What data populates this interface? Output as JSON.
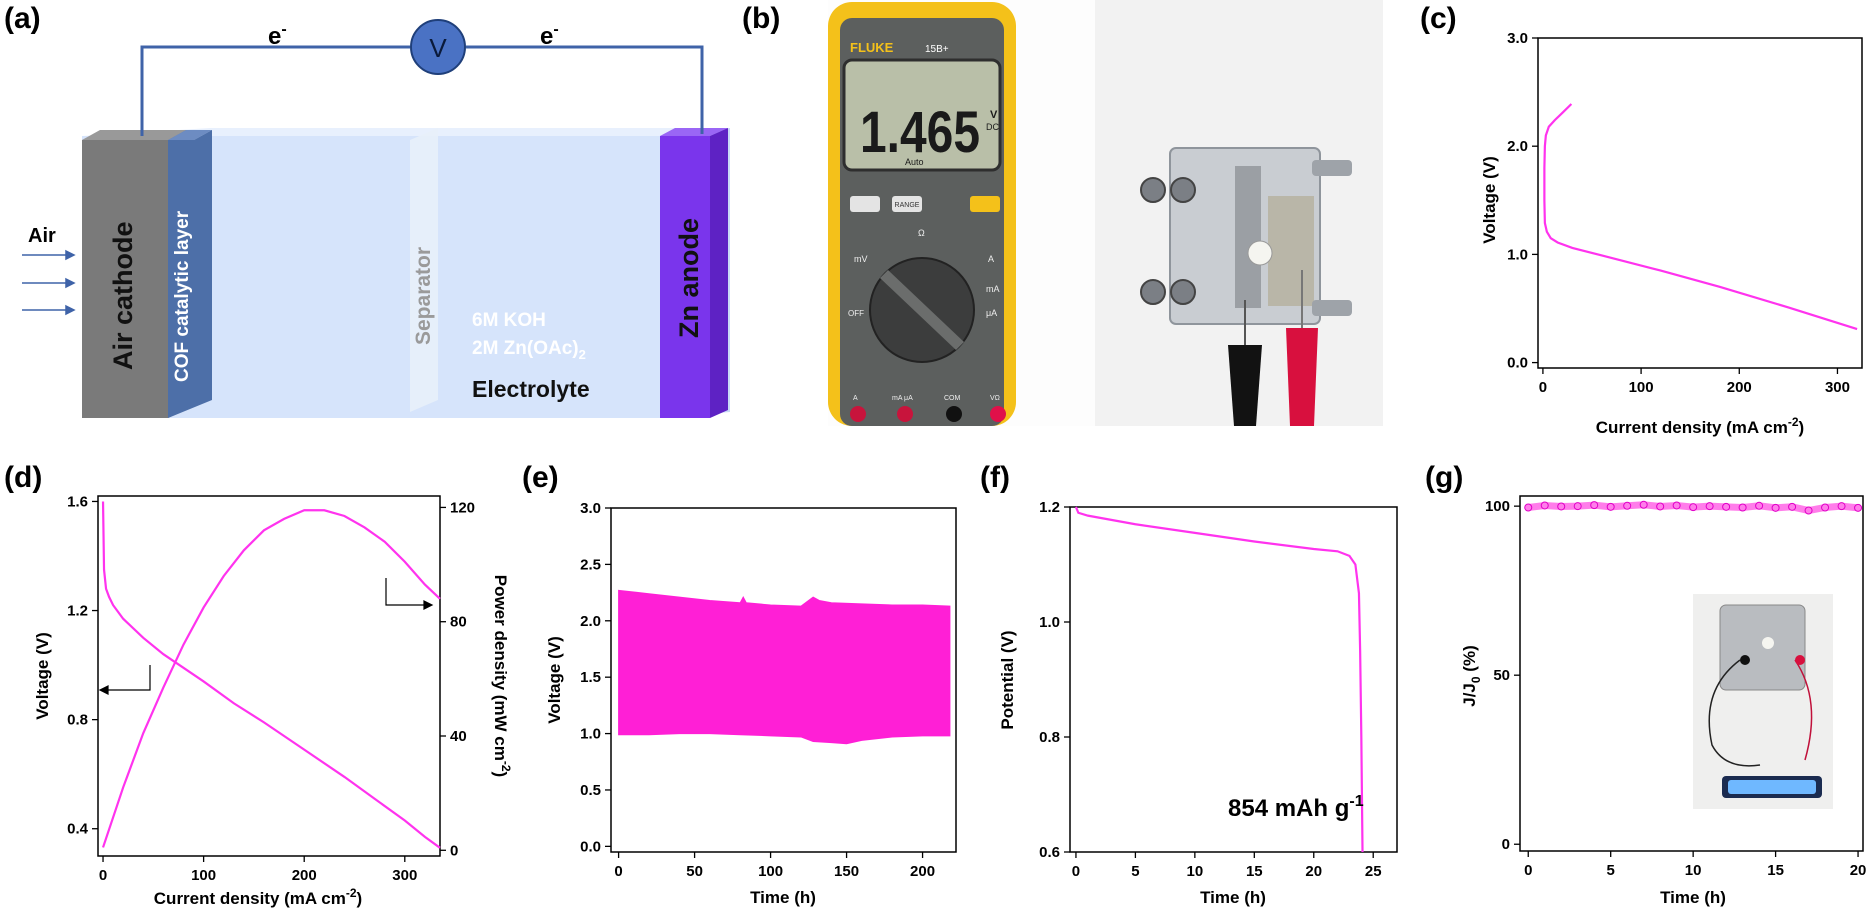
{
  "panel_labels": {
    "a": "(a)",
    "b": "(b)",
    "c": "(c)",
    "d": "(d)",
    "e": "(e)",
    "f": "(f)",
    "g": "(g)"
  },
  "schematic": {
    "electron_left": "e",
    "electron_right": "e",
    "electron_sup": "-",
    "voltmeter": "V",
    "air_label": "Air",
    "air_cathode": "Air cathode",
    "cof_layer": "COF catalytic layer",
    "separator": "Separator",
    "koh": "6M KOH",
    "zn_acetate_main": "2M Zn(OAc)",
    "zn_acetate_sub": "2",
    "electrolyte": "Electrolyte",
    "zn_anode": "Zn anode",
    "colors": {
      "cathode": "#7a7a7a",
      "cof": "#4d6fa8",
      "electrolyte": "#d6e4fb",
      "anode": "#7a35ec",
      "wire": "#3f63a8"
    }
  },
  "photo": {
    "multimeter_brand": "FLUKE",
    "multimeter_model": "15B+",
    "display_value": "1.465",
    "display_unit": "V",
    "display_unit_sub": "DC",
    "display_mode": "Auto",
    "button_range": "RANGE",
    "dial_labels": [
      "mV",
      "Ω",
      "A",
      "mA",
      "μA",
      "OFF"
    ],
    "jack_labels": [
      "A",
      "mA μA",
      "COM",
      "VΩ"
    ]
  },
  "chart_data": [
    {
      "panel": "c",
      "type": "line",
      "xlabel_main": "Current density (mA cm",
      "xlabel_sup": "-2",
      "xlabel_end": ")",
      "ylabel": "Voltage (V)",
      "xlim": [
        -5,
        325
      ],
      "ylim": [
        -0.05,
        3.0
      ],
      "xticks": [
        0,
        100,
        200,
        300
      ],
      "yticks": [
        0.0,
        1.0,
        2.0,
        3.0
      ],
      "ytick_labels": [
        "0.0",
        "1.0",
        "2.0",
        "3.0"
      ],
      "color": "#ff33ee",
      "series": [
        {
          "x": [
            320,
            250,
            180,
            120,
            60,
            30,
            15,
            8,
            4,
            2,
            1.5,
            1.5,
            2,
            3,
            6,
            12,
            20,
            29
          ],
          "y": [
            0.31,
            0.51,
            0.7,
            0.85,
            0.99,
            1.06,
            1.11,
            1.15,
            1.21,
            1.29,
            1.5,
            1.8,
            2.0,
            2.1,
            2.18,
            2.24,
            2.31,
            2.39
          ]
        }
      ]
    },
    {
      "panel": "d",
      "type": "line",
      "xlabel_main": "Current density (mA cm",
      "xlabel_sup": "-2",
      "xlabel_end": ")",
      "ylabel": "Voltage (V)",
      "y2label_main": "Power density (mW cm",
      "y2label_sup": "-2",
      "y2label_end": ")",
      "xlim": [
        -5,
        335
      ],
      "ylim": [
        0.3,
        1.62
      ],
      "y2lim": [
        -2,
        124
      ],
      "xticks": [
        0,
        100,
        200,
        300
      ],
      "yticks": [
        0.4,
        0.8,
        1.2,
        1.6
      ],
      "y2ticks": [
        0,
        40,
        80,
        120
      ],
      "color": "#ff33ee",
      "series": [
        {
          "axis": "left",
          "x": [
            0,
            1,
            3,
            6,
            10,
            20,
            40,
            60,
            80,
            100,
            130,
            160,
            200,
            240,
            270,
            300,
            320,
            335
          ],
          "y": [
            1.6,
            1.35,
            1.28,
            1.25,
            1.22,
            1.17,
            1.1,
            1.04,
            0.99,
            0.94,
            0.86,
            0.79,
            0.69,
            0.59,
            0.51,
            0.43,
            0.37,
            0.33
          ]
        },
        {
          "axis": "right",
          "x": [
            0,
            20,
            40,
            60,
            80,
            100,
            120,
            140,
            160,
            180,
            200,
            220,
            240,
            260,
            280,
            300,
            320,
            335
          ],
          "y": [
            1,
            22,
            41,
            57,
            72,
            85,
            96,
            105,
            112,
            116,
            119,
            119,
            117,
            113,
            108,
            101,
            93,
            88
          ]
        }
      ]
    },
    {
      "panel": "e",
      "type": "area",
      "xlabel": "Time (h)",
      "ylabel": "Voltage (V)",
      "xlim": [
        -5,
        222
      ],
      "ylim": [
        -0.05,
        3.0
      ],
      "xticks": [
        0,
        50,
        100,
        150,
        200
      ],
      "yticks": [
        0.0,
        0.5,
        1.0,
        1.5,
        2.0,
        2.5,
        3.0
      ],
      "ytick_labels": [
        "0.0",
        "0.5",
        "1.0",
        "1.5",
        "2.0",
        "2.5",
        "3.0"
      ],
      "color": "#ff1fd6",
      "series": [
        {
          "name_hidden": "upper",
          "x": [
            0,
            20,
            40,
            60,
            80,
            82,
            84,
            100,
            120,
            128,
            132,
            140,
            160,
            180,
            200,
            218
          ],
          "y": [
            2.27,
            2.24,
            2.21,
            2.18,
            2.16,
            2.21,
            2.16,
            2.14,
            2.13,
            2.21,
            2.18,
            2.16,
            2.15,
            2.14,
            2.14,
            2.13
          ]
        },
        {
          "name_hidden": "lower",
          "x": [
            0,
            20,
            40,
            60,
            80,
            100,
            120,
            128,
            140,
            150,
            160,
            180,
            200,
            218
          ],
          "y": [
            0.99,
            0.99,
            1.0,
            1.0,
            0.99,
            0.98,
            0.97,
            0.93,
            0.92,
            0.91,
            0.94,
            0.97,
            0.98,
            0.98
          ]
        }
      ]
    },
    {
      "panel": "f",
      "type": "line",
      "xlabel": "Time (h)",
      "ylabel": "Potential (V)",
      "xlim": [
        -0.5,
        27
      ],
      "ylim": [
        0.6,
        1.2
      ],
      "xticks": [
        0,
        5,
        10,
        15,
        20,
        25
      ],
      "yticks": [
        0.6,
        0.8,
        1.0,
        1.2
      ],
      "ytick_labels": [
        "0.6",
        "0.8",
        "1.0",
        "1.2"
      ],
      "annotation_main": "854 mAh g",
      "annotation_sup": "-1",
      "color": "#ff33ee",
      "series": [
        {
          "x": [
            0,
            0.2,
            1,
            5,
            10,
            15,
            20,
            22,
            23,
            23.5,
            23.8,
            23.9,
            24.0,
            24.1
          ],
          "y": [
            1.2,
            1.19,
            1.185,
            1.17,
            1.155,
            1.14,
            1.127,
            1.123,
            1.115,
            1.1,
            1.05,
            0.95,
            0.8,
            0.6
          ]
        }
      ]
    },
    {
      "panel": "g",
      "type": "scatter",
      "xlabel": "Time (h)",
      "ylabel_main": "J/J",
      "ylabel_sub": "0",
      "ylabel_end": " (%)",
      "xlim": [
        -0.5,
        20.3
      ],
      "ylim": [
        -2,
        103
      ],
      "xticks": [
        0,
        5,
        10,
        15,
        20
      ],
      "yticks": [
        0,
        50,
        100
      ],
      "color": "#ff66e6",
      "series": [
        {
          "x": [
            0,
            1,
            2,
            3,
            4,
            5,
            6,
            7,
            8,
            9,
            10,
            11,
            12,
            13,
            14,
            15,
            16,
            17,
            18,
            19,
            20
          ],
          "y": [
            99.6,
            100.2,
            99.9,
            100.0,
            100.3,
            99.8,
            100.1,
            100.4,
            99.9,
            100.2,
            99.7,
            100.0,
            99.8,
            99.6,
            100.1,
            99.5,
            99.8,
            98.7,
            99.6,
            100.0,
            99.5
          ]
        }
      ]
    }
  ]
}
